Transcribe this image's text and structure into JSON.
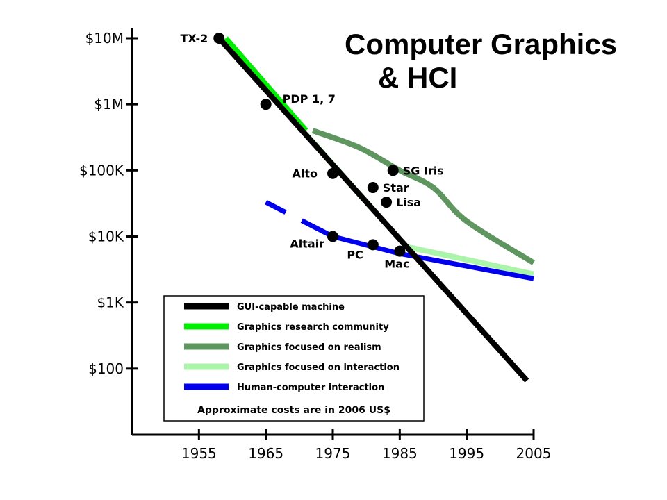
{
  "chart_data": {
    "type": "line",
    "title": [
      "Computer Graphics",
      "& HCI"
    ],
    "xlabel": "",
    "ylabel": "",
    "x_scale": "linear",
    "y_scale": "log",
    "xlim": [
      1945,
      2005
    ],
    "ylim": [
      10,
      10000000
    ],
    "x_ticks": [
      1955,
      1965,
      1975,
      1985,
      1995,
      2005
    ],
    "x_tick_labels": [
      "1955",
      "1965",
      "1975",
      "1985",
      "1995",
      "2005"
    ],
    "y_ticks": [
      100,
      1000,
      10000,
      100000,
      1000000,
      10000000
    ],
    "y_tick_labels": [
      "$100",
      "$1K",
      "$10K",
      "$100K",
      "$1M",
      "$10M"
    ],
    "grid": false,
    "series": [
      {
        "name": "GUI-capable machine",
        "color": "#000000",
        "points": [
          [
            1958,
            10000000
          ],
          [
            2004,
            66
          ]
        ]
      },
      {
        "name": "Graphics research community",
        "color": "#00ee00",
        "points": [
          [
            1959,
            10000000
          ],
          [
            1971,
            400000
          ]
        ]
      },
      {
        "name": "Graphics focused on realism",
        "color": "#5f955f",
        "points": [
          [
            1972,
            400000
          ],
          [
            1979,
            220000
          ],
          [
            1985,
            100000
          ],
          [
            1990,
            55000
          ],
          [
            1995,
            17000
          ],
          [
            2005,
            4000
          ]
        ]
      },
      {
        "name": "Graphics focused on interaction",
        "color": "#aaf5aa",
        "points": [
          [
            1971,
            350000
          ],
          [
            1986,
            7000
          ],
          [
            2005,
            2700
          ]
        ]
      },
      {
        "name": "Human-computer interaction",
        "color": "#0000ee",
        "dashed_until": 1973,
        "points": [
          [
            1965,
            33000
          ],
          [
            1975,
            10000
          ],
          [
            1985,
            5500
          ],
          [
            2005,
            2300
          ]
        ]
      }
    ],
    "points": [
      {
        "label": "TX-2",
        "x": 1958,
        "y": 10000000,
        "label_side": "left"
      },
      {
        "label": "PDP 1, 7",
        "x": 1965,
        "y": 1000000,
        "label_side": "right"
      },
      {
        "label": "Alto",
        "x": 1975,
        "y": 90000,
        "label_side": "left"
      },
      {
        "label": "SG Iris",
        "x": 1984,
        "y": 100000,
        "label_side": "right"
      },
      {
        "label": "Star",
        "x": 1981,
        "y": 55000,
        "label_side": "right"
      },
      {
        "label": "Lisa",
        "x": 1983,
        "y": 33000,
        "label_side": "right"
      },
      {
        "label": "Altair",
        "x": 1975,
        "y": 10000,
        "label_side": "left"
      },
      {
        "label": "PC",
        "x": 1981,
        "y": 7500,
        "label_side": "below-left"
      },
      {
        "label": "Mac",
        "x": 1985,
        "y": 6000,
        "label_side": "below-left"
      }
    ],
    "legend": {
      "position": "bottom-center",
      "entries": [
        "GUI-capable machine",
        "Graphics research community",
        "Graphics focused on realism",
        "Graphics focused on interaction",
        "Human-computer interaction"
      ],
      "note": "Approximate costs are in 2006 US$"
    }
  }
}
